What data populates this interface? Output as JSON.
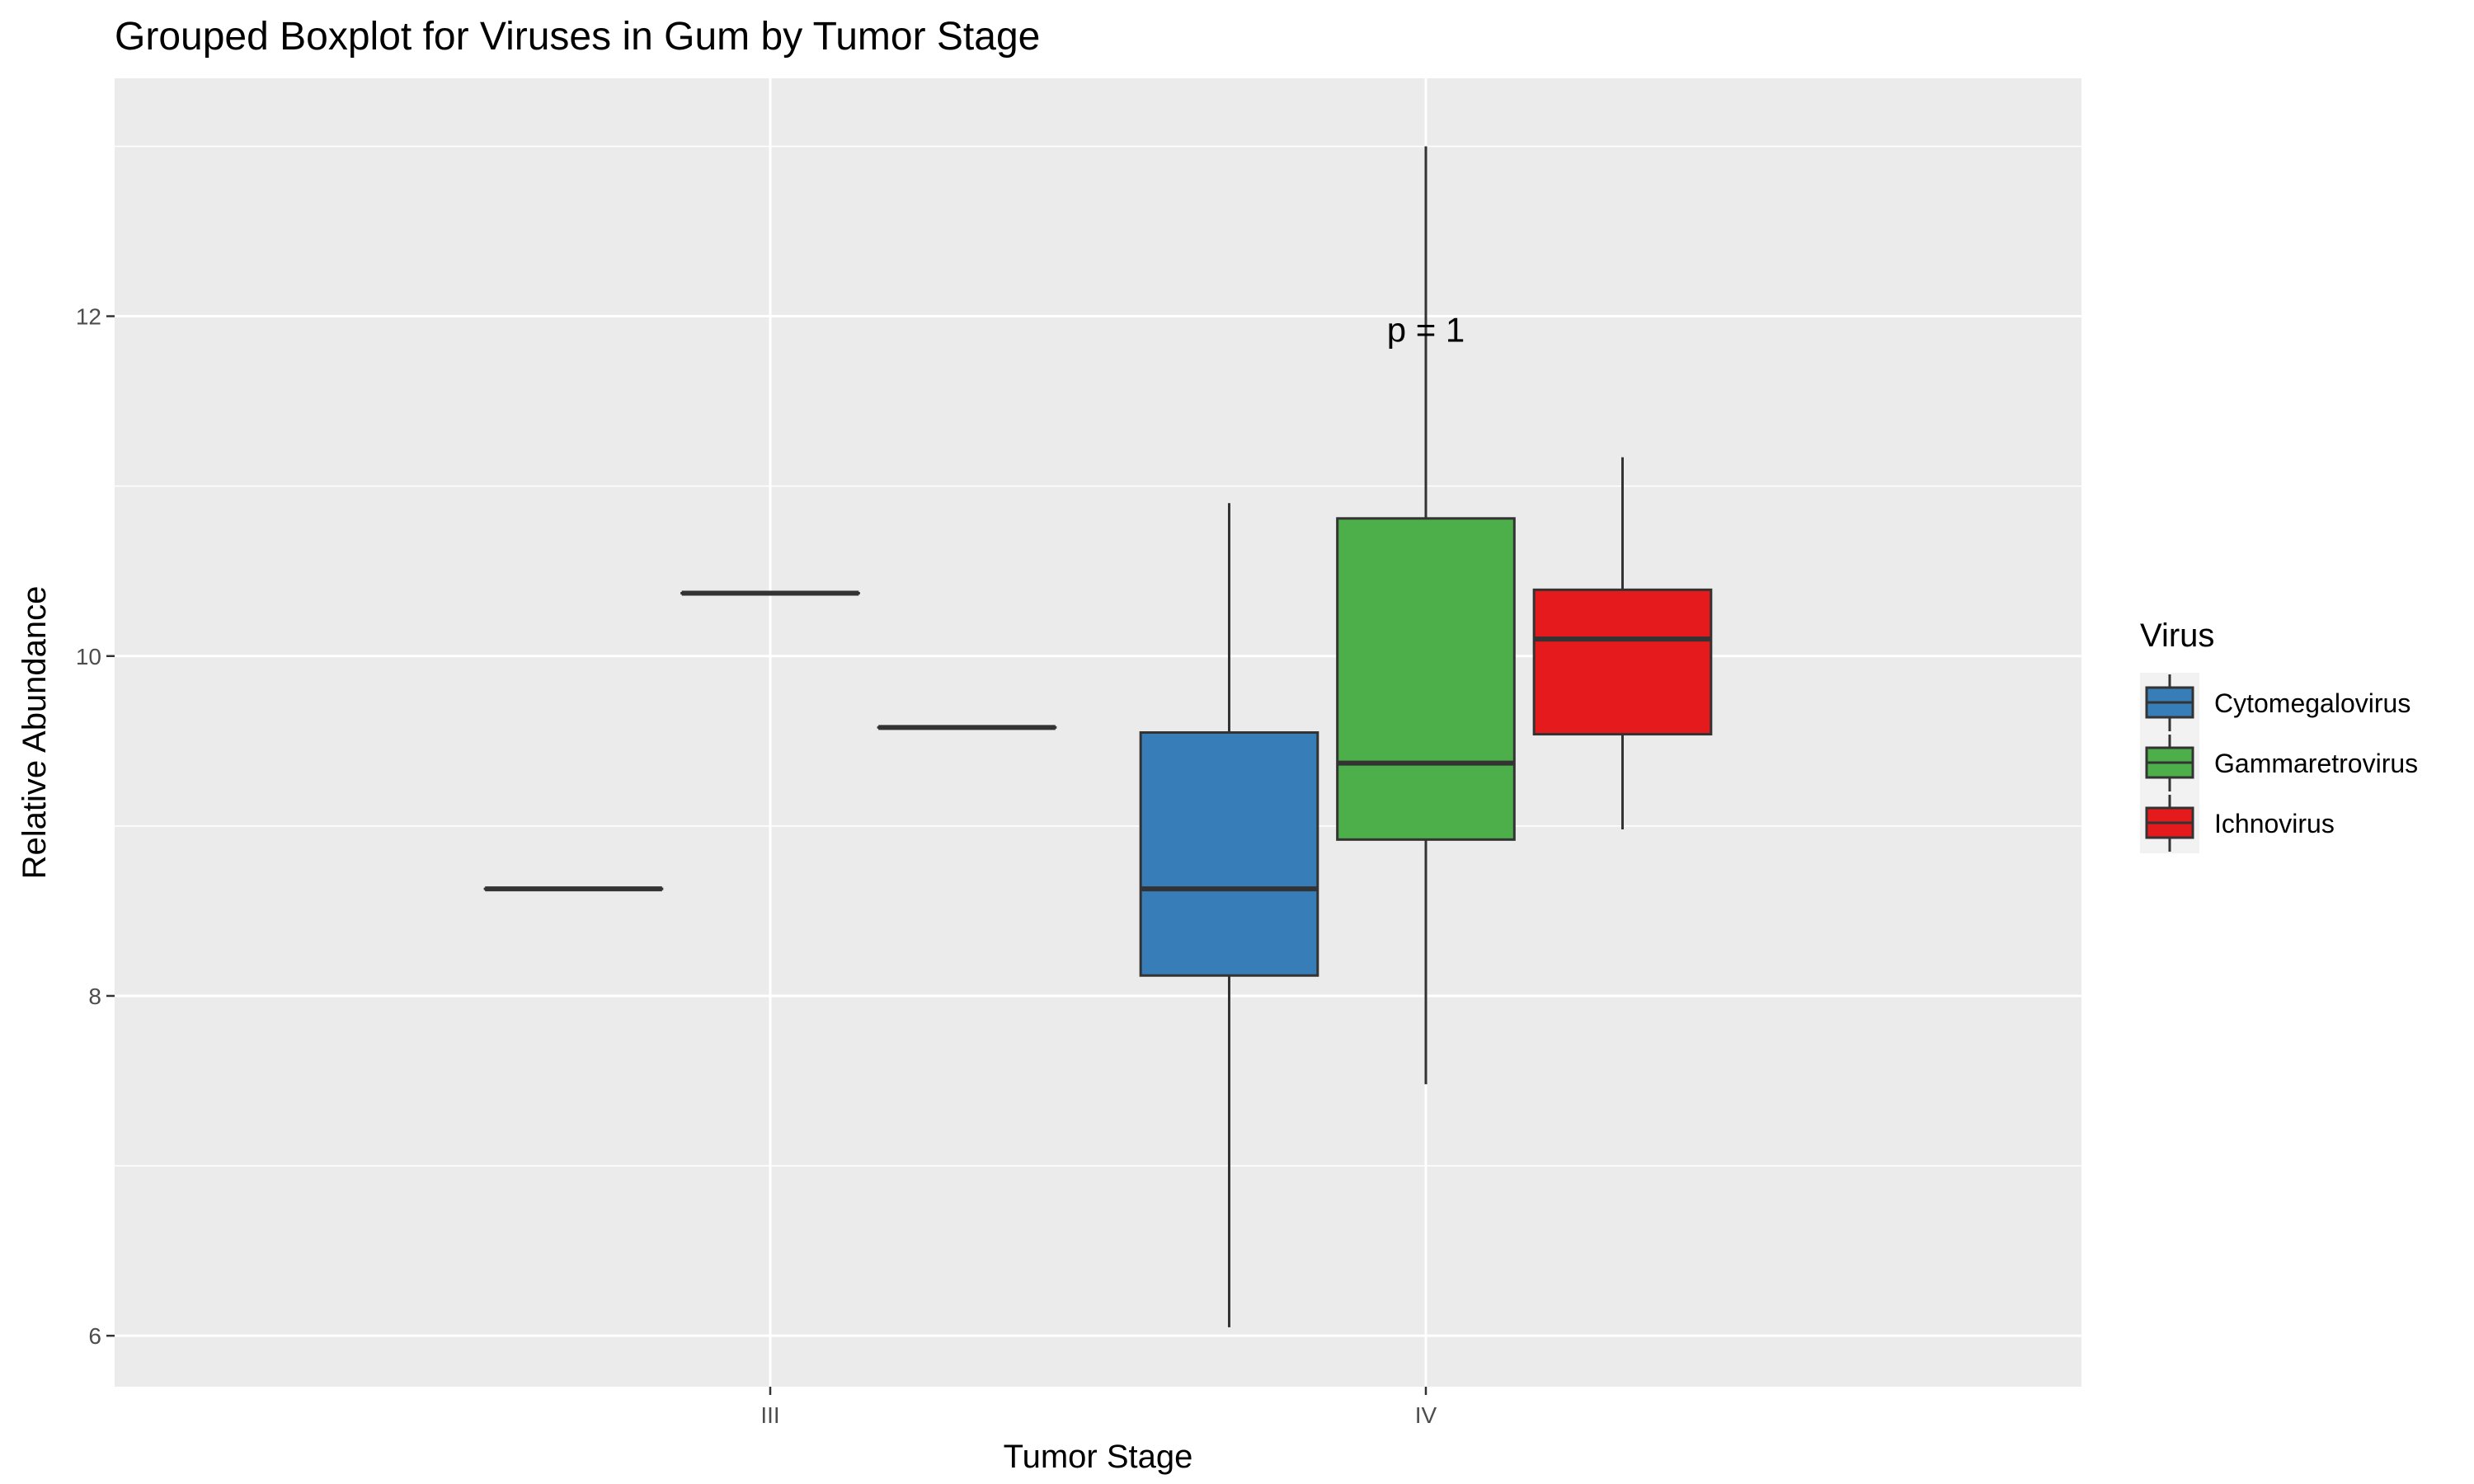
{
  "chart_data": {
    "type": "boxplot",
    "title": "Grouped Boxplot for Viruses in Gum by Tumor Stage",
    "xlabel": "Tumor Stage",
    "ylabel": "Relative Abundance",
    "categories": [
      "III",
      "IV"
    ],
    "ylim": [
      5.7,
      13.4
    ],
    "y_ticks": [
      6,
      8,
      10,
      12
    ],
    "y_tick_labels": [
      "6",
      "8",
      "10",
      "12"
    ],
    "grid": true,
    "legend": {
      "title": "Virus",
      "position": "right"
    },
    "annotations": [
      {
        "text": "p = 1",
        "category": "IV",
        "y": 11.85
      }
    ],
    "series": [
      {
        "name": "Cytomegalovirus",
        "color": "#377EB8",
        "boxes": [
          {
            "category": "III",
            "min": 8.63,
            "q1": 8.63,
            "median": 8.63,
            "q3": 8.63,
            "max": 8.63
          },
          {
            "category": "IV",
            "min": 6.05,
            "q1": 8.12,
            "median": 8.63,
            "q3": 9.55,
            "max": 10.9
          }
        ]
      },
      {
        "name": "Gammaretrovirus",
        "color": "#4DAF4A",
        "boxes": [
          {
            "category": "III",
            "min": 10.37,
            "q1": 10.37,
            "median": 10.37,
            "q3": 10.37,
            "max": 10.37
          },
          {
            "category": "IV",
            "min": 7.48,
            "q1": 8.92,
            "median": 9.37,
            "q3": 10.81,
            "max": 13.0
          }
        ]
      },
      {
        "name": "Ichnovirus",
        "color": "#E41A1C",
        "boxes": [
          {
            "category": "III",
            "min": 9.58,
            "q1": 9.58,
            "median": 9.58,
            "q3": 9.58,
            "max": 9.58
          },
          {
            "category": "IV",
            "min": 8.98,
            "q1": 9.54,
            "median": 10.1,
            "q3": 10.39,
            "max": 11.17
          }
        ]
      }
    ]
  }
}
